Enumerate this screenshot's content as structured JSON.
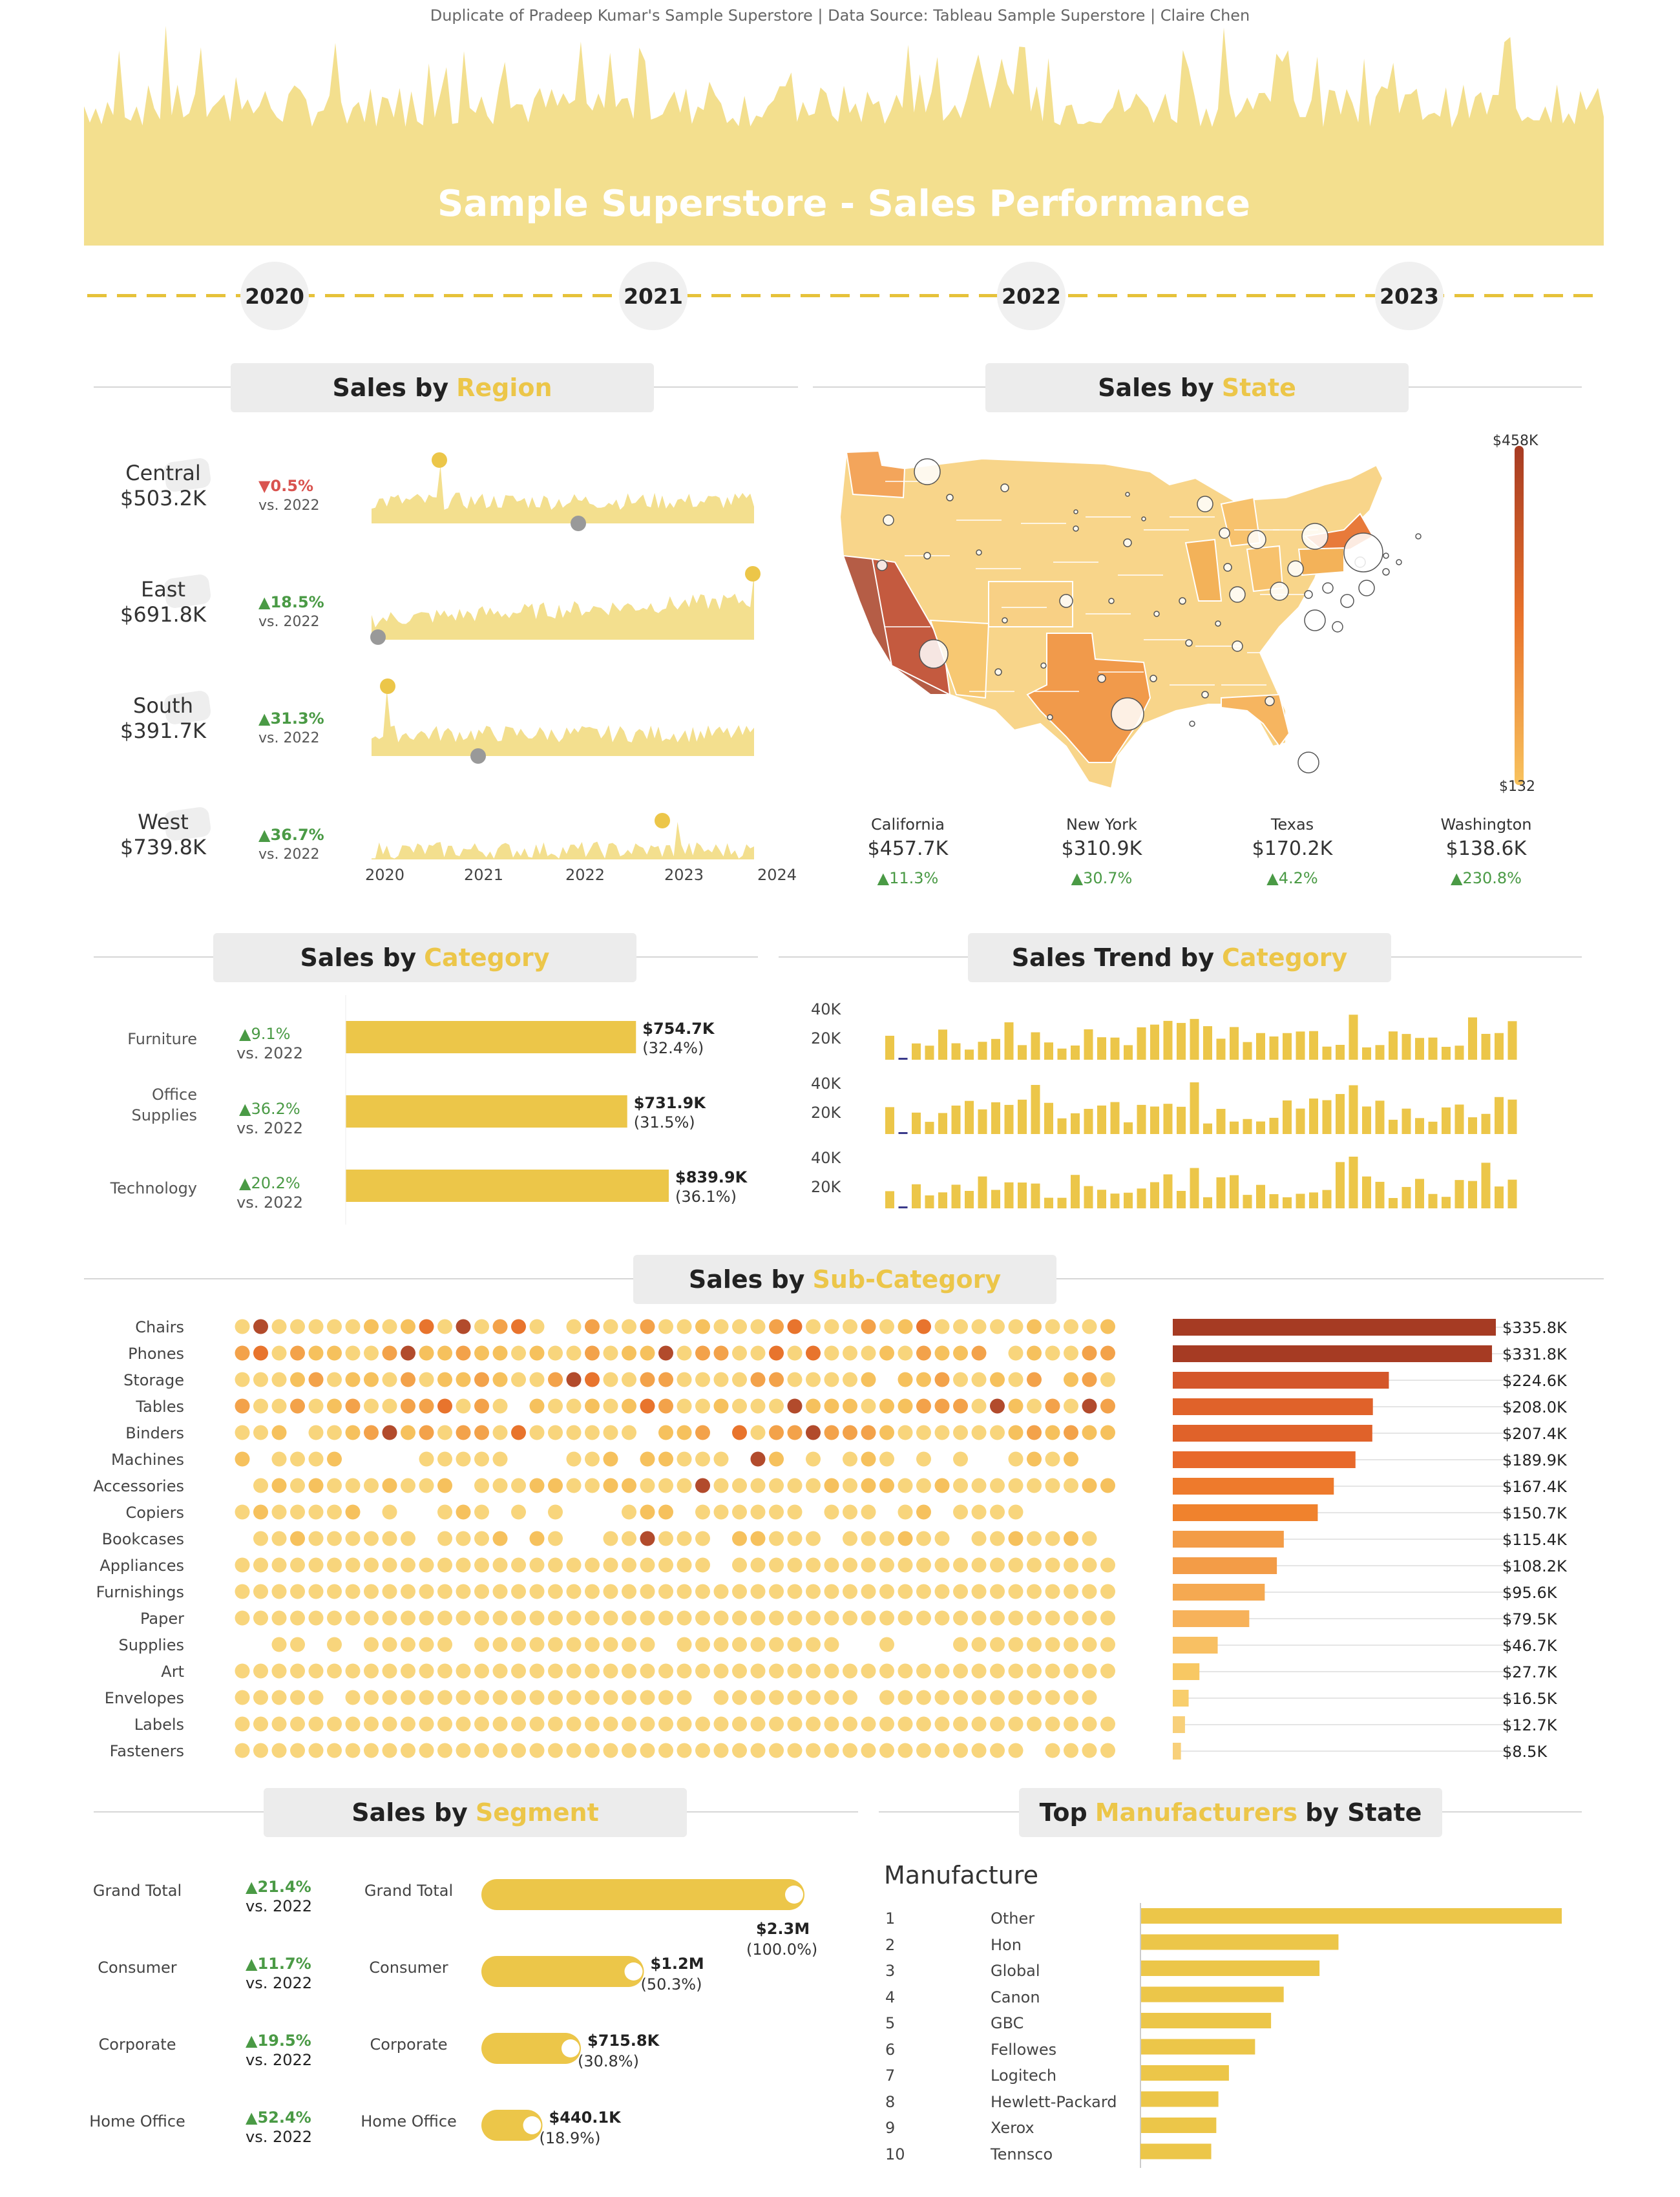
{
  "credit": "Duplicate of Pradeep Kumar's Sample Superstore | Data Source: Tableau Sample Superstore | Claire Chen",
  "title": "Sample Superstore - Sales Performance",
  "timeline": {
    "years": [
      "2020",
      "2021",
      "2022",
      "2023"
    ]
  },
  "sections": {
    "region": {
      "pre": "Sales by",
      "hl": "Region"
    },
    "state": {
      "pre": "Sales by",
      "hl": "State"
    },
    "category": {
      "pre": "Sales by",
      "hl": "Category"
    },
    "trend": {
      "pre": "Sales Trend by",
      "hl": "Category"
    },
    "subcat": {
      "pre": "Sales by",
      "hl": "Sub-Category"
    },
    "segment": {
      "pre": "Sales by",
      "hl": "Segment"
    },
    "manuf": {
      "pre": "Top",
      "hl": "Manufacturers",
      "post": "by State"
    }
  },
  "regions": [
    {
      "name": "Central",
      "sales": "$503.2K",
      "change": "▼0.5%",
      "trend": "down",
      "vs": "vs. 2022"
    },
    {
      "name": "East",
      "sales": "$691.8K",
      "change": "▲18.5%",
      "trend": "up",
      "vs": "vs. 2022"
    },
    {
      "name": "South",
      "sales": "$391.7K",
      "change": "▲31.3%",
      "trend": "up",
      "vs": "vs. 2022"
    },
    {
      "name": "West",
      "sales": "$739.8K",
      "change": "▲36.7%",
      "trend": "up",
      "vs": "vs. 2022"
    }
  ],
  "region_axis": [
    "2020",
    "2021",
    "2022",
    "2023",
    "2024"
  ],
  "state_legend": {
    "max": "$458K",
    "min": "$132"
  },
  "states": [
    {
      "name": "California",
      "sales": "$457.7K",
      "change": "▲11.3%"
    },
    {
      "name": "New York",
      "sales": "$310.9K",
      "change": "▲30.7%"
    },
    {
      "name": "Texas",
      "sales": "$170.2K",
      "change": "▲4.2%"
    },
    {
      "name": "Washington",
      "sales": "$138.6K",
      "change": "▲230.8%"
    }
  ],
  "categories": [
    {
      "name": "Furniture",
      "change": "▲9.1%",
      "vs": "vs. 2022",
      "value": "$754.7K",
      "pct": "(32.4%)",
      "amount": 754.7
    },
    {
      "name": "Office\nSupplies",
      "change": "▲36.2%",
      "vs": "vs. 2022",
      "value": "$731.9K",
      "pct": "(31.5%)",
      "amount": 731.9
    },
    {
      "name": "Technology",
      "change": "▲20.2%",
      "vs": "vs. 2022",
      "value": "$839.9K",
      "pct": "(36.1%)",
      "amount": 839.9
    }
  ],
  "trend_axis": [
    "40K",
    "20K"
  ],
  "subcategories": [
    {
      "name": "Chairs",
      "value": "$335.8K",
      "amount": 335.8
    },
    {
      "name": "Phones",
      "value": "$331.8K",
      "amount": 331.8
    },
    {
      "name": "Storage",
      "value": "$224.6K",
      "amount": 224.6
    },
    {
      "name": "Tables",
      "value": "$208.0K",
      "amount": 208.0
    },
    {
      "name": "Binders",
      "value": "$207.4K",
      "amount": 207.4
    },
    {
      "name": "Machines",
      "value": "$189.9K",
      "amount": 189.9
    },
    {
      "name": "Accessories",
      "value": "$167.4K",
      "amount": 167.4
    },
    {
      "name": "Copiers",
      "value": "$150.7K",
      "amount": 150.7
    },
    {
      "name": "Bookcases",
      "value": "$115.4K",
      "amount": 115.4
    },
    {
      "name": "Appliances",
      "value": "$108.2K",
      "amount": 108.2
    },
    {
      "name": "Furnishings",
      "value": "$95.6K",
      "amount": 95.6
    },
    {
      "name": "Paper",
      "value": "$79.5K",
      "amount": 79.5
    },
    {
      "name": "Supplies",
      "value": "$46.7K",
      "amount": 46.7
    },
    {
      "name": "Art",
      "value": "$27.7K",
      "amount": 27.7
    },
    {
      "name": "Envelopes",
      "value": "$16.5K",
      "amount": 16.5
    },
    {
      "name": "Labels",
      "value": "$12.7K",
      "amount": 12.7
    },
    {
      "name": "Fasteners",
      "value": "$8.5K",
      "amount": 8.5
    }
  ],
  "segments_change": [
    {
      "name": "Grand Total",
      "change": "▲21.4%",
      "vs": "vs. 2022"
    },
    {
      "name": "Consumer",
      "change": "▲11.7%",
      "vs": "vs. 2022"
    },
    {
      "name": "Corporate",
      "change": "▲19.5%",
      "vs": "vs. 2022"
    },
    {
      "name": "Home Office",
      "change": "▲52.4%",
      "vs": "vs. 2022"
    }
  ],
  "segments": [
    {
      "name": "Grand Total",
      "value": "$2.3M",
      "pct": "(100.0%)",
      "share": 100.0
    },
    {
      "name": "Consumer",
      "value": "$1.2M",
      "pct": "(50.3%)",
      "share": 50.3
    },
    {
      "name": "Corporate",
      "value": "$715.8K",
      "pct": "(30.8%)",
      "share": 30.8
    },
    {
      "name": "Home Office",
      "value": "$440.1K",
      "pct": "(18.9%)",
      "share": 18.9
    }
  ],
  "manufacturers_title": "Manufacture",
  "manufacturers": [
    {
      "rank": "1",
      "name": "Other",
      "amount": 100
    },
    {
      "rank": "2",
      "name": "Hon",
      "amount": 47
    },
    {
      "rank": "3",
      "name": "Global",
      "amount": 42.5
    },
    {
      "rank": "4",
      "name": "Canon",
      "amount": 34
    },
    {
      "rank": "5",
      "name": "GBC",
      "amount": 31
    },
    {
      "rank": "6",
      "name": "Fellowes",
      "amount": 27.2
    },
    {
      "rank": "7",
      "name": "Logitech",
      "amount": 21
    },
    {
      "rank": "8",
      "name": "Hewlett-Packard",
      "amount": 18.5
    },
    {
      "rank": "9",
      "name": "Xerox",
      "amount": 18
    },
    {
      "rank": "10",
      "name": "Tennsco",
      "amount": 16.8
    }
  ],
  "colors": {
    "accent": "#ecc649",
    "fill": "#f3df8e",
    "up": "#4a9a45",
    "down": "#d9534f",
    "dark": "#a63b23"
  }
}
